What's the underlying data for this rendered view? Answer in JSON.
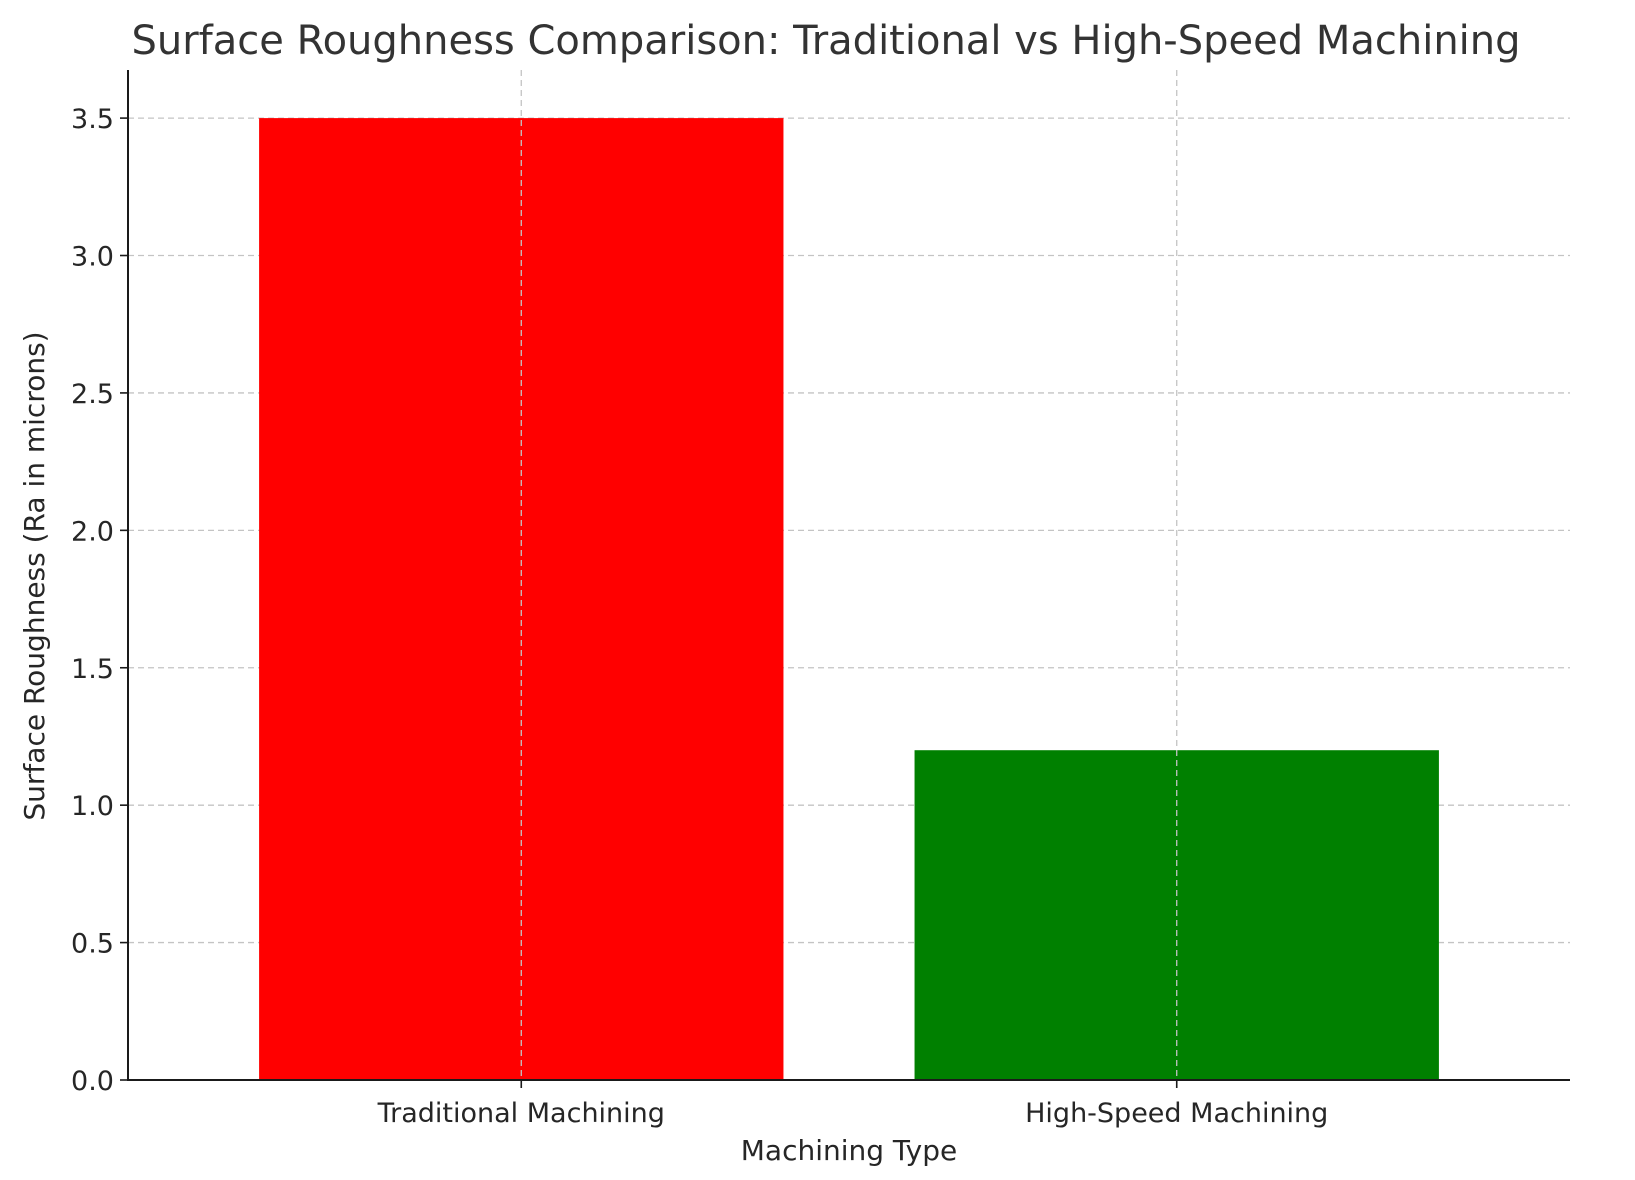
{
  "chart_data": {
    "type": "bar",
    "title": "Surface Roughness Comparison: Traditional vs High-Speed Machining",
    "xlabel": "Machining Type",
    "ylabel": "Surface Roughness (Ra in microns)",
    "categories": [
      "Traditional Machining",
      "High-Speed Machining"
    ],
    "values": [
      3.5,
      1.2
    ],
    "colors": [
      "#ff0000",
      "#008000"
    ],
    "ylim": [
      0,
      3.675
    ],
    "yticks": [
      0.0,
      0.5,
      1.0,
      1.5,
      2.0,
      2.5,
      3.0,
      3.5
    ],
    "ytick_labels": [
      "0.0",
      "0.5",
      "1.0",
      "1.5",
      "2.0",
      "2.5",
      "3.0",
      "3.5"
    ],
    "grid": true,
    "legend": "none"
  }
}
